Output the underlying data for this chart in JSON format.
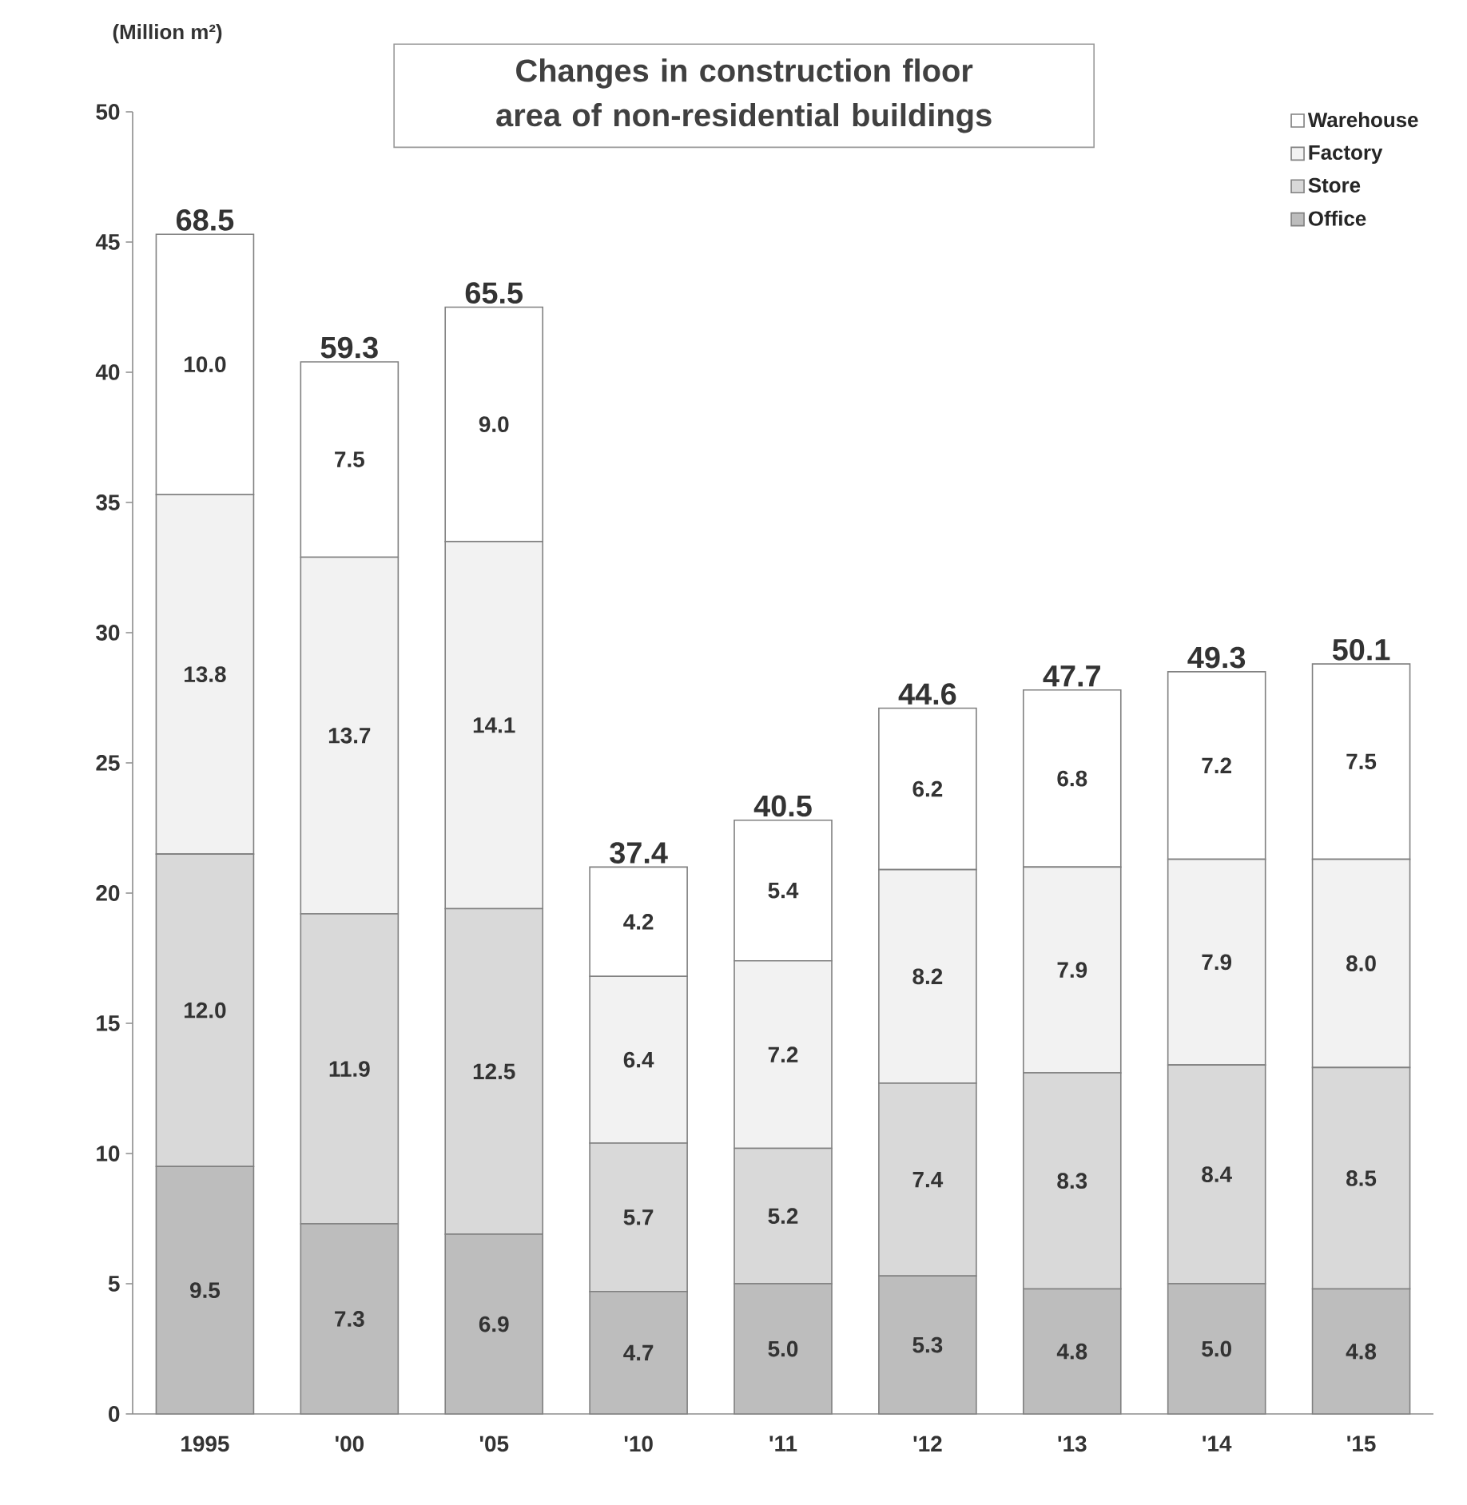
{
  "chart_data": {
    "type": "bar",
    "title": "Changes in construction floor area of non-residential buildings",
    "ylabel": "(Million m²)",
    "categories": [
      "1995",
      "'00",
      "'05",
      "'10",
      "'11",
      "'12",
      "'13",
      "'14",
      "'15"
    ],
    "stacked": true,
    "legend": "top right",
    "grid": false,
    "series": [
      {
        "name": "Office",
        "color": "#bdbdbd",
        "values": [
          9.5,
          7.3,
          6.9,
          4.7,
          5.0,
          5.3,
          4.8,
          5.0,
          4.8
        ],
        "value_labels": [
          "9.5",
          "7.3",
          "6.9",
          "4.7",
          "5.0",
          "5.3",
          "4.8",
          "5.0",
          "4.8"
        ]
      },
      {
        "name": "Store",
        "color": "#d9d9d9",
        "values": [
          12.0,
          11.9,
          12.5,
          5.7,
          5.2,
          7.4,
          8.3,
          8.4,
          8.5
        ],
        "value_labels": [
          "12.0",
          "11.9",
          "12.5",
          "5.7",
          "5.2",
          "7.4",
          "8.3",
          "8.4",
          "8.5"
        ]
      },
      {
        "name": "Factory",
        "color": "#f2f2f2",
        "values": [
          13.8,
          13.7,
          14.1,
          6.4,
          7.2,
          8.2,
          7.9,
          7.9,
          8.0
        ],
        "value_labels": [
          "13.8",
          "13.7",
          "14.1",
          "6.4",
          "7.2",
          "8.2",
          "7.9",
          "7.9",
          "8.0"
        ]
      },
      {
        "name": "Warehouse",
        "color": "#ffffff",
        "values": [
          10.0,
          7.5,
          9.0,
          4.2,
          5.4,
          6.2,
          6.8,
          7.2,
          7.5
        ],
        "value_labels": [
          "10.0",
          "7.5",
          "9.0",
          "4.2",
          "5.4",
          "6.2",
          "6.8",
          "7.2",
          "7.5"
        ]
      }
    ],
    "annotations": [
      {
        "text": "68.5",
        "x": "1995",
        "y": 45.3
      },
      {
        "text": "59.3",
        "x": "'00",
        "y": 40.4
      },
      {
        "text": "65.5",
        "x": "'05",
        "y": 42.5
      },
      {
        "text": "37.4",
        "x": "'10",
        "y": 21.0
      },
      {
        "text": "40.5",
        "x": "'11",
        "y": 22.8
      },
      {
        "text": "44.6",
        "x": "'12",
        "y": 27.1
      },
      {
        "text": "47.7",
        "x": "'13",
        "y": 27.8
      },
      {
        "text": "49.3",
        "x": "'14",
        "y": 28.5
      },
      {
        "text": "50.1",
        "x": "'15",
        "y": 28.8
      }
    ],
    "ylim": [
      0,
      50
    ],
    "yticks": [
      0,
      5,
      10,
      15,
      20,
      25,
      30,
      35,
      40,
      45,
      50
    ]
  }
}
